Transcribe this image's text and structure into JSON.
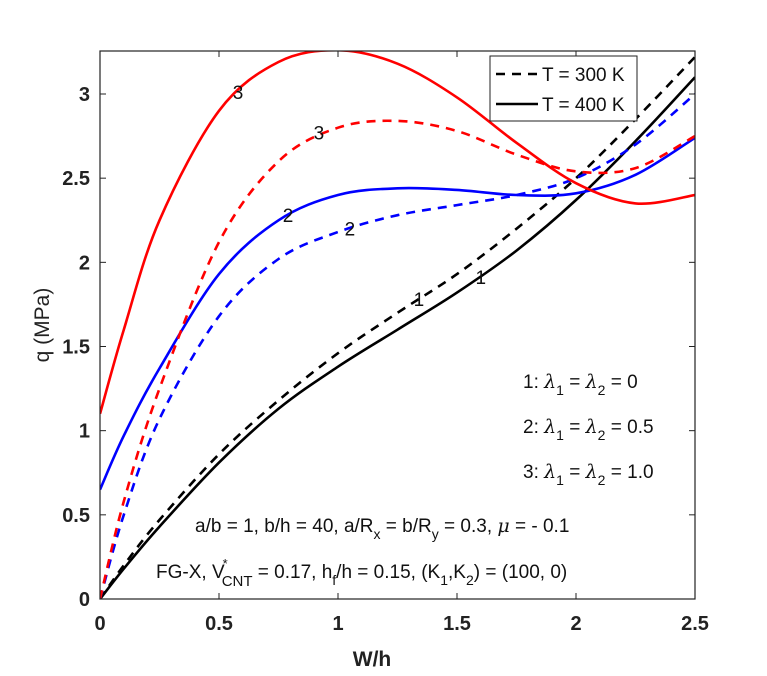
{
  "chart_data": {
    "type": "line",
    "title": "",
    "xlabel": "W/h",
    "ylabel": "q (MPa)",
    "xlim": [
      0,
      2.5
    ],
    "ylim": [
      0,
      3.26
    ],
    "grid": false,
    "xticks": [
      0,
      0.5,
      1,
      1.5,
      2,
      2.5
    ],
    "xtick_labels": [
      "0",
      "0.5",
      "1",
      "1.5",
      "2",
      "2.5"
    ],
    "yticks": [
      0,
      0.5,
      1,
      1.5,
      2,
      2.5,
      3
    ],
    "ytick_labels": [
      "0",
      "0.5",
      "1",
      "1.5",
      "2",
      "2.5",
      "3"
    ],
    "legend": {
      "placement": "top-right",
      "entries": [
        {
          "label": "T = 300 K",
          "style": "dashed",
          "color": "#000000"
        },
        {
          "label": "T = 400 K",
          "style": "solid",
          "color": "#000000"
        }
      ]
    },
    "series": [
      {
        "name": "1: T = 300 K",
        "case": "1",
        "temperature": "300 K",
        "style": "dashed",
        "color": "#000000",
        "x": [
          0,
          0.1,
          0.25,
          0.5,
          0.75,
          1.0,
          1.25,
          1.5,
          1.75,
          2.0,
          2.25,
          2.5
        ],
        "y": [
          0,
          0.2,
          0.47,
          0.86,
          1.18,
          1.46,
          1.7,
          1.93,
          2.2,
          2.5,
          2.85,
          3.22
        ]
      },
      {
        "name": "1: T = 400 K",
        "case": "1",
        "temperature": "400 K",
        "style": "solid",
        "color": "#000000",
        "x": [
          0,
          0.1,
          0.25,
          0.5,
          0.75,
          1.0,
          1.25,
          1.5,
          1.75,
          2.0,
          2.25,
          2.5
        ],
        "y": [
          0,
          0.18,
          0.43,
          0.81,
          1.13,
          1.38,
          1.6,
          1.82,
          2.07,
          2.37,
          2.72,
          3.1
        ]
      },
      {
        "name": "2: T = 300 K",
        "case": "2",
        "temperature": "300 K",
        "style": "dashed",
        "color": "#0000ff",
        "x": [
          0,
          0.1,
          0.25,
          0.5,
          0.75,
          1.0,
          1.25,
          1.5,
          1.75,
          2.0,
          2.25,
          2.5
        ],
        "y": [
          0,
          0.5,
          1.07,
          1.68,
          2.02,
          2.18,
          2.28,
          2.34,
          2.4,
          2.5,
          2.7,
          3.0
        ]
      },
      {
        "name": "2: T = 400 K",
        "case": "2",
        "temperature": "400 K",
        "style": "solid",
        "color": "#0000ff",
        "x": [
          0,
          0.1,
          0.25,
          0.5,
          0.75,
          1.0,
          1.25,
          1.5,
          1.75,
          2.0,
          2.25,
          2.5
        ],
        "y": [
          0.65,
          0.97,
          1.37,
          1.93,
          2.25,
          2.4,
          2.44,
          2.43,
          2.4,
          2.41,
          2.52,
          2.74
        ]
      },
      {
        "name": "3: T = 300 K",
        "case": "3",
        "temperature": "300 K",
        "style": "dashed",
        "color": "#ff0000",
        "x": [
          0,
          0.1,
          0.25,
          0.5,
          0.75,
          1.0,
          1.25,
          1.5,
          1.75,
          2.0,
          2.25,
          2.5
        ],
        "y": [
          0,
          0.58,
          1.25,
          2.12,
          2.6,
          2.8,
          2.84,
          2.78,
          2.64,
          2.54,
          2.56,
          2.75
        ]
      },
      {
        "name": "3: T = 400 K",
        "case": "3",
        "temperature": "400 K",
        "style": "solid",
        "color": "#ff0000",
        "x": [
          0,
          0.1,
          0.25,
          0.5,
          0.75,
          1.0,
          1.25,
          1.5,
          1.75,
          2.0,
          2.25,
          2.5
        ],
        "y": [
          1.1,
          1.6,
          2.25,
          2.9,
          3.19,
          3.26,
          3.18,
          2.98,
          2.71,
          2.47,
          2.35,
          2.4
        ]
      }
    ],
    "curve_labels": [
      {
        "text": "3",
        "x": 0.58,
        "y": 3.0
      },
      {
        "text": "3",
        "x": 0.92,
        "y": 2.76
      },
      {
        "text": "2",
        "x": 0.79,
        "y": 2.27
      },
      {
        "text": "2",
        "x": 1.05,
        "y": 2.19
      },
      {
        "text": "1",
        "x": 1.34,
        "y": 1.77
      },
      {
        "text": "1",
        "x": 1.6,
        "y": 1.9
      }
    ],
    "annotations": {
      "cases": [
        {
          "prefix": "1: ",
          "l1": "λ",
          "s1": "1",
          "mid": " = ",
          "l2": "λ",
          "s2": "2",
          "val": " = 0"
        },
        {
          "prefix": "2: ",
          "l1": "λ",
          "s1": "1",
          "mid": " = ",
          "l2": "λ",
          "s2": "2",
          "val": " = 0.5"
        },
        {
          "prefix": "3: ",
          "l1": "λ",
          "s1": "1",
          "mid": " = ",
          "l2": "λ",
          "s2": "2",
          "val": " = 1.0"
        }
      ],
      "params_line1": {
        "a": "a/b = 1, b/h = 40, a/R",
        "sub_x": "x",
        "b": " = b/R",
        "sub_y": "y",
        "c": " = 0.3, ",
        "mu": "μ",
        "d": " = - 0.1"
      },
      "params_line2": {
        "a": "FG-X, V",
        "sup": "*",
        "sub": "CNT",
        "b": " = 0.17, h",
        "sub_f": "f",
        "c": "/h = 0.15, (K",
        "sub_1": "1",
        "d": ",K",
        "sub_2": "2",
        "e": ") = (100, 0)"
      }
    }
  }
}
